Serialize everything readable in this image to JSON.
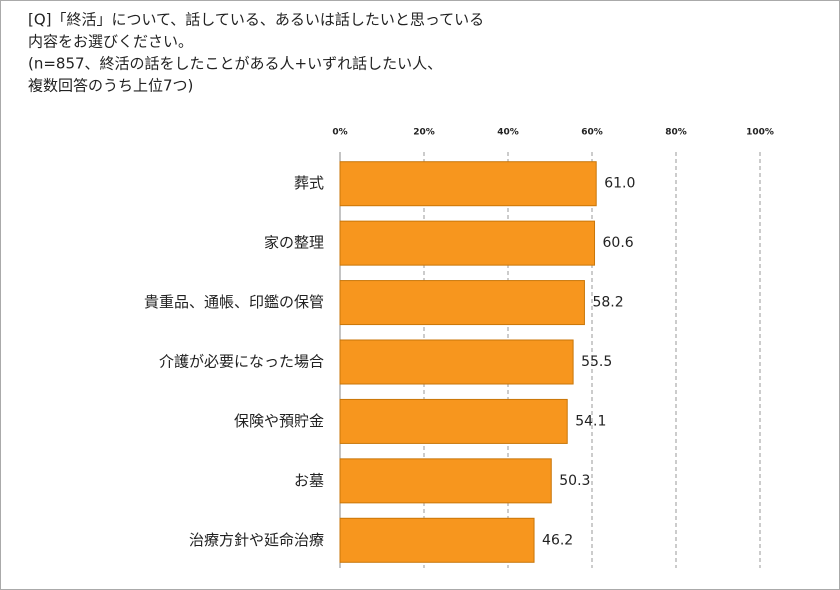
{
  "chart_data": {
    "type": "bar",
    "orientation": "horizontal",
    "title": [
      "[Q]「終活」について、話している、あるいは話したいと思っている",
      "内容をお選びください。",
      "(n=857、終活の話をしたことがある人+いずれ話したい人、",
      "複数回答のうち上位7つ)"
    ],
    "categories": [
      "葬式",
      "家の整理",
      "貴重品、通帳、印鑑の保管",
      "介護が必要になった場合",
      "保険や預貯金",
      "お墓",
      "治療方針や延命治療"
    ],
    "values": [
      61.0,
      60.6,
      58.2,
      55.5,
      54.1,
      50.3,
      46.2
    ],
    "value_labels": [
      "61.0",
      "60.6",
      "58.2",
      "55.5",
      "54.1",
      "50.3",
      "46.2"
    ],
    "color": "#f7961e",
    "xlim": [
      0,
      100
    ],
    "xticks": [
      {
        "value": 0,
        "label": "0%"
      },
      {
        "value": 20,
        "label": "20%"
      },
      {
        "value": 40,
        "label": "40%"
      },
      {
        "value": 60,
        "label": "60%"
      },
      {
        "value": 80,
        "label": "80%"
      },
      {
        "value": 100,
        "label": "100%"
      }
    ],
    "grid": true
  }
}
